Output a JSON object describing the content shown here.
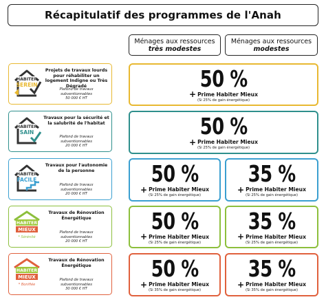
{
  "title": "Récapitulatif des programmes de l'Anah",
  "headers": {
    "very_modest_line1": "Ménages aux ressources",
    "very_modest_line2": "très modestes",
    "modest_line1": "Ménages aux ressources",
    "modest_line2": "modestes"
  },
  "rows": [
    {
      "logo_line1": "HABITER",
      "logo_line2": "SEREIN",
      "logo_tag": "",
      "title": "Projets de travaux lourds pour réhabiliter un logement Indigne ou Très Dégradé",
      "ceiling_line1": "Plafond de travaux subventionnables",
      "ceiling_line2": "50 000 € HT",
      "very_modest": {
        "percent": "50 %",
        "bonus": "Prime Habiter Mieux",
        "condition": "(Si 25% de gain énergétique)"
      },
      "modest": null,
      "color": "#e8b830"
    },
    {
      "logo_line1": "HABITER",
      "logo_line2": "SAIN",
      "logo_tag": "",
      "title": "Travaux pour la sécurité et la salubrité de l'habitat",
      "ceiling_line1": "Plafond de travaux subventionnables",
      "ceiling_line2": "20 000 € HT",
      "very_modest": {
        "percent": "50 %",
        "bonus": "Prime Habiter Mieux",
        "condition": "(Si 25% de gain énergétique)"
      },
      "modest": null,
      "color": "#2e8f8c"
    },
    {
      "logo_line1": "HABITER",
      "logo_line2": "FACILE",
      "logo_tag": "",
      "title": "Travaux pour l'autonomie de la personne",
      "ceiling_line1": "Plafond de travaux subventionnables",
      "ceiling_line2": "20 000 € HT",
      "very_modest": {
        "percent": "50 %",
        "bonus": "Prime Habiter Mieux",
        "condition": "(Si 25% de gain énergétique)"
      },
      "modest": {
        "percent": "35 %",
        "bonus": "Prime Habiter Mieux",
        "condition": "(Si 25% de gain énergétique)"
      },
      "color": "#3a9fd0"
    },
    {
      "logo_line1": "HABITER",
      "logo_line2": "MIEUX",
      "logo_tag": "Sérénité",
      "title": "Travaux de Rénovation Énergétique",
      "ceiling_line1": "Plafond de travaux subventionnables",
      "ceiling_line2": "20 000 € HT",
      "very_modest": {
        "percent": "50 %",
        "bonus": "Prime Habiter Mieux",
        "condition": "(Si 25% de gain énergétique)"
      },
      "modest": {
        "percent": "35 %",
        "bonus": "Prime Habiter Mieux",
        "condition": "(Si 25% de gain énergétique)"
      },
      "color": "#8cbf3c"
    },
    {
      "logo_line1": "HABITER",
      "logo_line2": "MIEUX",
      "logo_tag": "Bonifiée",
      "title": "Travaux de Rénovation Énergétique",
      "ceiling_line1": "Plafond de travaux subventionnables",
      "ceiling_line2": "30 000 € HT",
      "very_modest": {
        "percent": "50 %",
        "bonus": "Prime Habiter Mieux",
        "condition": "(Si 35% de gain énergétique)"
      },
      "modest": {
        "percent": "35 %",
        "bonus": "Prime Habiter Mieux",
        "condition": "(Si 35% de gain énergétique)"
      },
      "color": "#e0603c"
    }
  ]
}
